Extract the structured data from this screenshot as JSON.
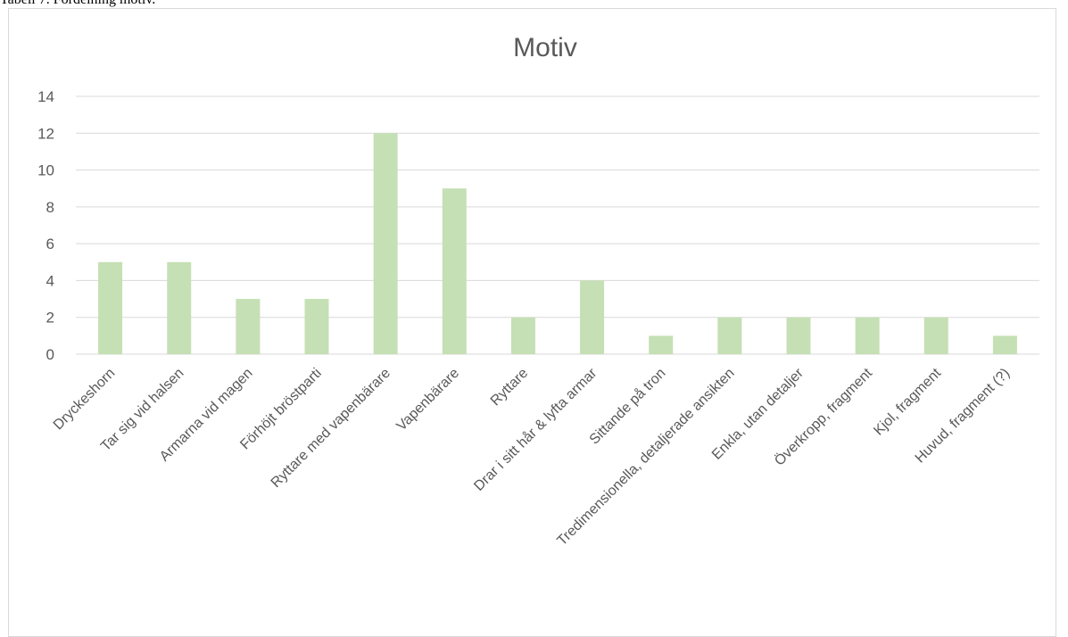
{
  "caption": "Tabell 7. Fördelning motiv.",
  "chart_data": {
    "type": "bar",
    "title": "Motiv",
    "categories": [
      "Dryckeshorn",
      "Tar sig vid halsen",
      "Armarna vid magen",
      "Förhöjt bröstparti",
      "Ryttare med vapenbärare",
      "Vapenbärare",
      "Ryttare",
      "Drar i sitt hår & lyfta armar",
      "Sittande på tron",
      "Tredimensionella, detaljerade ansikten",
      "Enkla, utan detaljer",
      "Överkropp, fragment",
      "Kjol, fragment",
      "Huvud, fragment (?)"
    ],
    "values": [
      5,
      5,
      3,
      3,
      12,
      9,
      2,
      4,
      1,
      2,
      2,
      2,
      2,
      1
    ],
    "ylim": [
      0,
      14
    ],
    "yticks": [
      0,
      2,
      4,
      6,
      8,
      10,
      12,
      14
    ],
    "grid": true,
    "legend": "none",
    "bar_color": "#c5e0b4",
    "grid_color": "#d9d9d9",
    "text_color": "#595959"
  }
}
